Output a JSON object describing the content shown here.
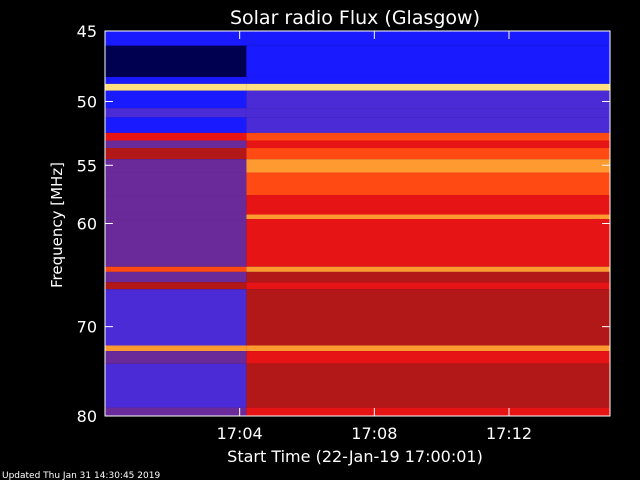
{
  "chart_data": {
    "type": "heatmap",
    "title": "Solar radio Flux (Glasgow)",
    "xlabel": "Start Time (22-Jan-19 17:00:01)",
    "ylabel": "Frequency [MHz]",
    "x_ticks": [
      "17:04",
      "17:08",
      "17:12"
    ],
    "x_tick_minutes": [
      4,
      8,
      12
    ],
    "x_range_minutes": [
      0,
      15
    ],
    "y_ticks": [
      45,
      50,
      55,
      60,
      70,
      80
    ],
    "y_scale": "log",
    "y_range_mhz": [
      45,
      80
    ],
    "event_time_minutes": 4.2,
    "colormap": [
      "#000050",
      "#1a1aff",
      "#4b2bd6",
      "#6a2a9a",
      "#b31818",
      "#e61414",
      "#ff4a14",
      "#ff9a30",
      "#ffe080"
    ],
    "bands_mhz": [
      {
        "from": 45.0,
        "to": 46.0,
        "before": 1,
        "after": 1
      },
      {
        "from": 46.0,
        "to": 48.2,
        "before": 0,
        "after": 1
      },
      {
        "from": 48.2,
        "to": 48.7,
        "before": 1,
        "after": 1
      },
      {
        "from": 48.7,
        "to": 49.2,
        "before": 8,
        "after": 8
      },
      {
        "from": 49.2,
        "to": 50.5,
        "before": 1,
        "after": 2
      },
      {
        "from": 50.5,
        "to": 51.2,
        "before": 2,
        "after": 2
      },
      {
        "from": 51.2,
        "to": 52.4,
        "before": 1,
        "after": 2
      },
      {
        "from": 52.4,
        "to": 53.0,
        "before": 5,
        "after": 6
      },
      {
        "from": 53.0,
        "to": 53.6,
        "before": 3,
        "after": 5
      },
      {
        "from": 53.6,
        "to": 54.5,
        "before": 4,
        "after": 6
      },
      {
        "from": 54.5,
        "to": 55.6,
        "before": 3,
        "after": 7
      },
      {
        "from": 55.6,
        "to": 57.5,
        "before": 3,
        "after": 6
      },
      {
        "from": 57.5,
        "to": 59.2,
        "before": 3,
        "after": 5
      },
      {
        "from": 59.2,
        "to": 59.6,
        "before": 3,
        "after": 7
      },
      {
        "from": 59.6,
        "to": 64.0,
        "before": 3,
        "after": 5
      },
      {
        "from": 64.0,
        "to": 64.5,
        "before": 6,
        "after": 7
      },
      {
        "from": 64.5,
        "to": 65.5,
        "before": 3,
        "after": 4
      },
      {
        "from": 65.5,
        "to": 66.2,
        "before": 4,
        "after": 5
      },
      {
        "from": 66.2,
        "to": 72.0,
        "before": 2,
        "after": 4
      },
      {
        "from": 72.0,
        "to": 72.6,
        "before": 7,
        "after": 7
      },
      {
        "from": 72.6,
        "to": 74.0,
        "before": 3,
        "after": 5
      },
      {
        "from": 74.0,
        "to": 79.0,
        "before": 2,
        "after": 4
      },
      {
        "from": 79.0,
        "to": 80.0,
        "before": 3,
        "after": 5
      }
    ]
  },
  "footer": {
    "updated": "Updated Thu Jan 31 14:30:45 2019"
  }
}
